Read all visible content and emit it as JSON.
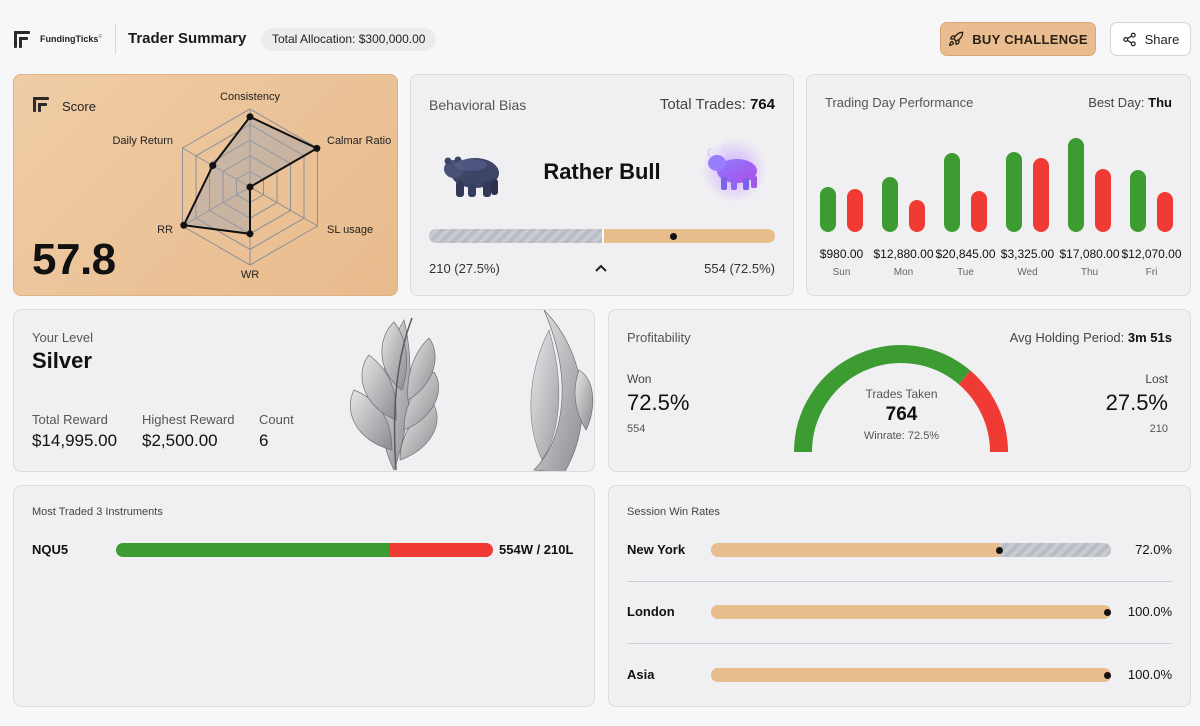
{
  "header": {
    "brand": "FundingTicks",
    "brand_mark": "®",
    "title": "Trader Summary",
    "allocation": "Total Allocation: $300,000.00",
    "buy_label": "BUY CHALLENGE",
    "share_label": "Share"
  },
  "score": {
    "title": "Score",
    "value": "57.8",
    "axes": {
      "consistency": "Consistency",
      "calmar": "Calmar Ratio",
      "sl_usage": "SL usage",
      "wr": "WR",
      "rr": "RR",
      "daily_return": "Daily Return"
    },
    "values": [
      0.9,
      0.99,
      0.0,
      0.6,
      0.98,
      0.55
    ]
  },
  "bias": {
    "title": "Behavioral Bias",
    "total_label": "Total Trades:",
    "total_value": "764",
    "verdict": "Rather Bull",
    "bear_text": "210 (27.5%)",
    "bull_text": "554 (72.5%)",
    "bear_fraction": 0.5,
    "marker_fraction": 0.707
  },
  "trading_day": {
    "title": "Trading Day Performance",
    "best_label": "Best Day:",
    "best_value": "Thu"
  },
  "chart_data": {
    "type": "bar",
    "title": "Trading Day Performance",
    "categories": [
      "Sun",
      "Mon",
      "Tue",
      "Wed",
      "Thu",
      "Fri"
    ],
    "totals": [
      "$980.00",
      "$12,880.00",
      "$20,845.00",
      "$3,325.00",
      "$17,080.00",
      "$12,070.00"
    ],
    "series": [
      {
        "name": "Profit",
        "color": "#3c9c32",
        "values": [
          45,
          55,
          79,
          80,
          94,
          62
        ]
      },
      {
        "name": "Loss",
        "color": "#ef3b33",
        "values": [
          43,
          32,
          41,
          74,
          63,
          40
        ]
      }
    ],
    "ylim": [
      0,
      100
    ]
  },
  "level": {
    "label": "Your Level",
    "value": "Silver",
    "total_reward_label": "Total Reward",
    "total_reward": "$14,995.00",
    "highest_reward_label": "Highest Reward",
    "highest_reward": "$2,500.00",
    "count_label": "Count",
    "count": "6"
  },
  "profitability": {
    "title": "Profitability",
    "hold_label": "Avg Holding Period:",
    "hold_value": "3m 51s",
    "won_label": "Won",
    "won_pct": "72.5%",
    "won_count": "554",
    "lost_label": "Lost",
    "lost_pct": "27.5%",
    "lost_count": "210",
    "gauge_label": "Trades Taken",
    "gauge_value": "764",
    "winrate": "Winrate: 72.5%",
    "win_fraction": 0.725
  },
  "most_traded": {
    "title": "Most Traded 3 Instruments",
    "items": [
      {
        "symbol": "NQU5",
        "won_fraction": 0.725,
        "value": "554W / 210L"
      }
    ]
  },
  "sessions": {
    "title": "Session Win Rates",
    "items": [
      {
        "name": "New York",
        "pct": "72.0%",
        "fraction": 0.72
      },
      {
        "name": "London",
        "pct": "100.0%",
        "fraction": 1.0
      },
      {
        "name": "Asia",
        "pct": "100.0%",
        "fraction": 1.0
      }
    ]
  },
  "colors": {
    "accent": "#e8bd8e",
    "win": "#3c9c32",
    "loss": "#ef3b33"
  }
}
